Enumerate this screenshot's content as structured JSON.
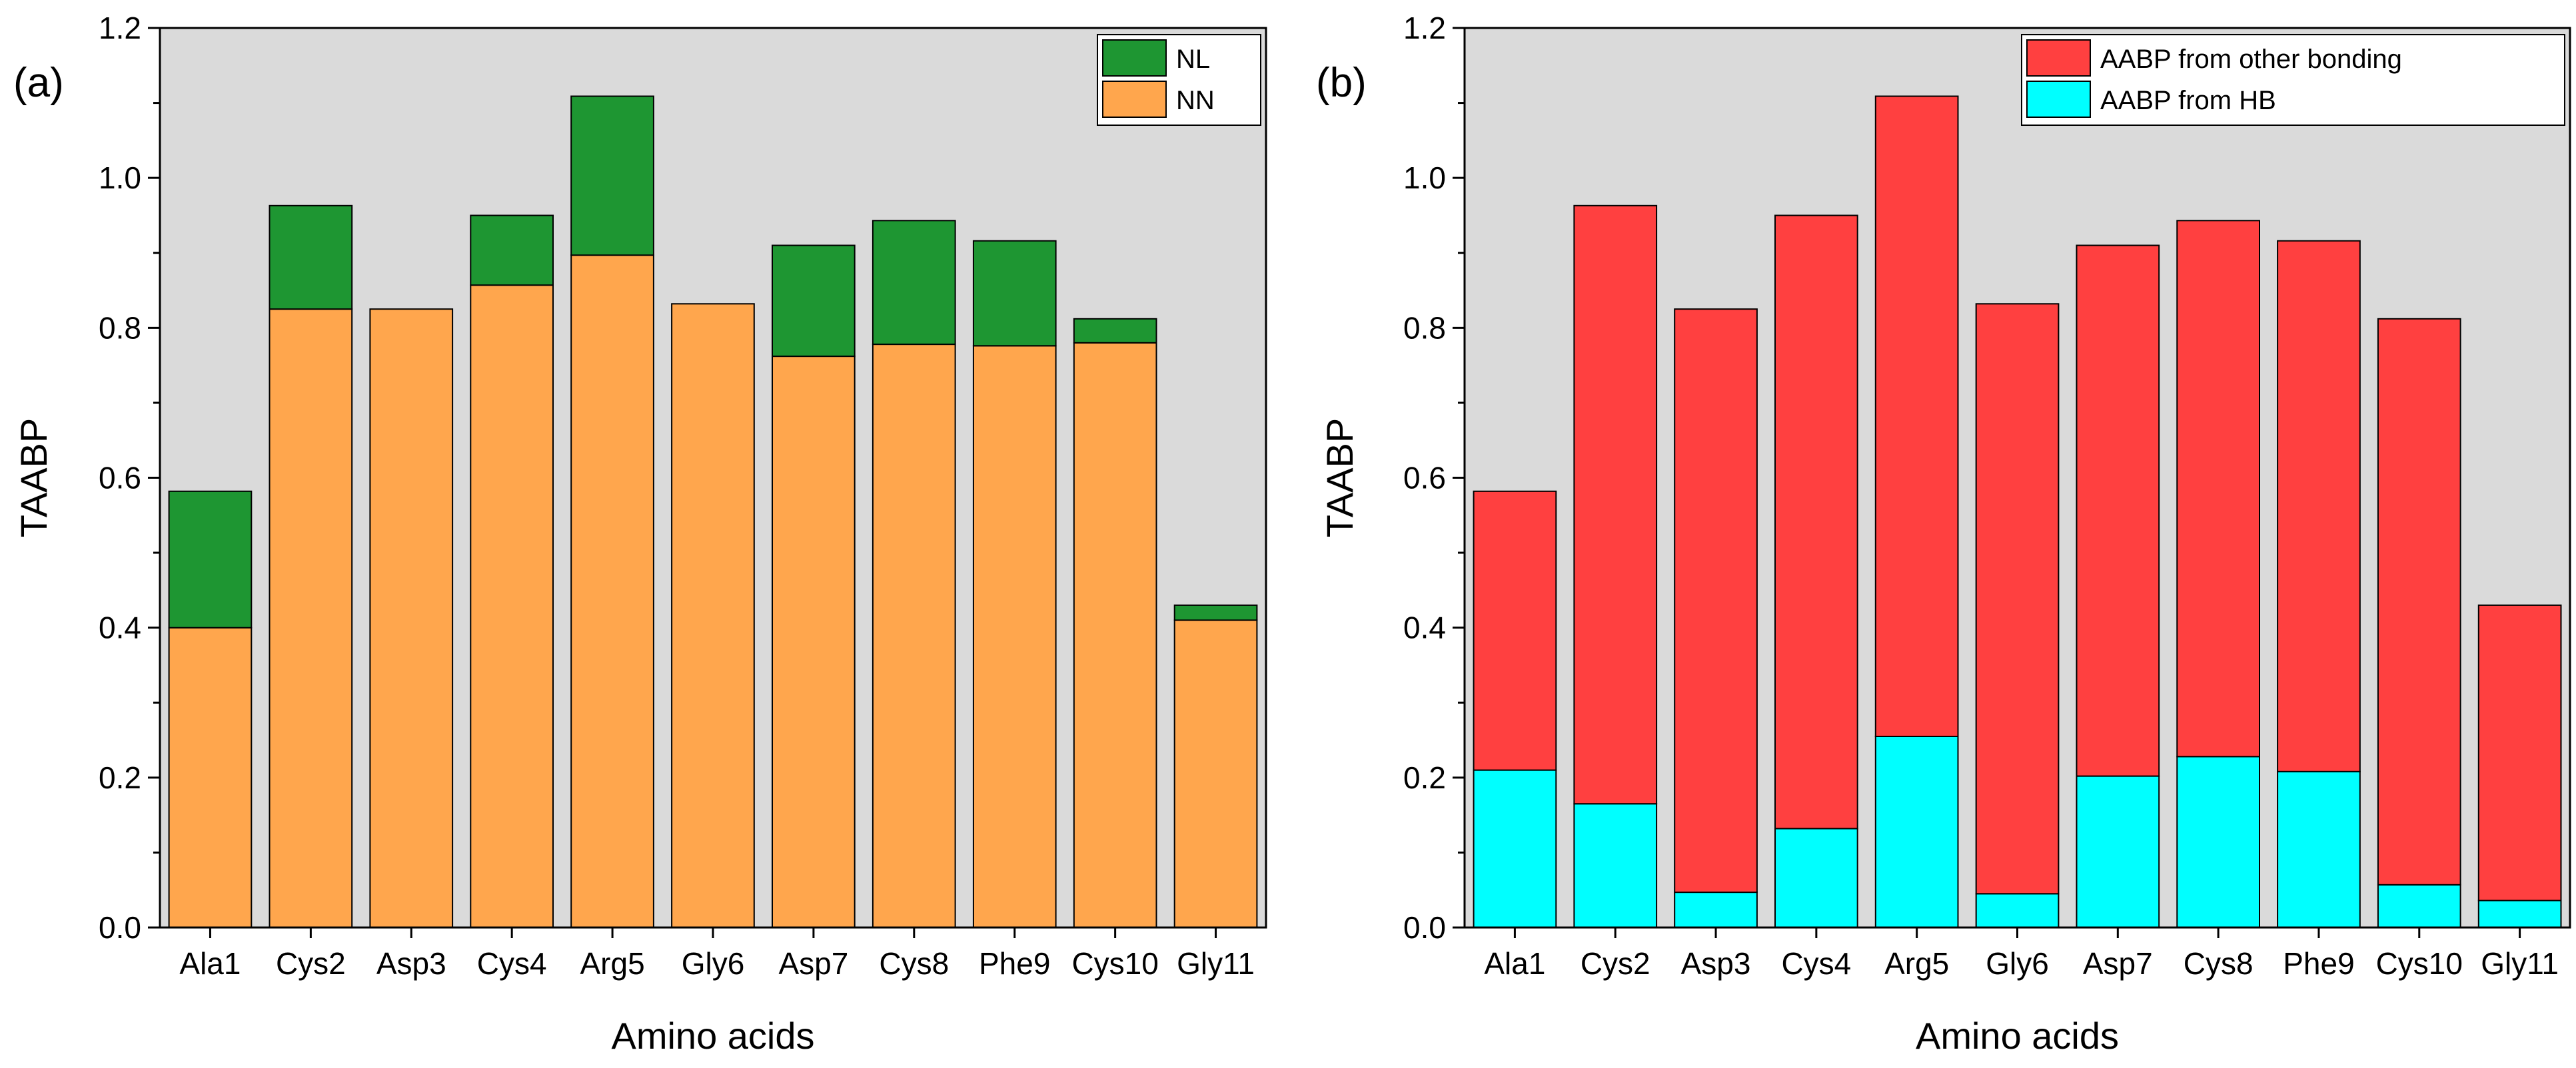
{
  "chart_data": [
    {
      "panel": "(a)",
      "type": "bar",
      "stacked": true,
      "xlabel": "Amino acids",
      "ylabel": "TAABP",
      "ylim": [
        0,
        1.2
      ],
      "yticks": [
        "0.0",
        "0.2",
        "0.4",
        "0.6",
        "0.8",
        "1.0",
        "1.2"
      ],
      "grid": false,
      "legend_position": "top-right",
      "categories": [
        "Ala1",
        "Cys2",
        "Asp3",
        "Cys4",
        "Arg5",
        "Gly6",
        "Asp7",
        "Cys8",
        "Phe9",
        "Cys10",
        "Gly11"
      ],
      "series": [
        {
          "name": "NN",
          "color": "#FFA64D",
          "values": [
            0.4,
            0.825,
            0.825,
            0.857,
            0.897,
            0.832,
            0.762,
            0.778,
            0.776,
            0.78,
            0.41
          ]
        },
        {
          "name": "NL",
          "color": "#1E9632",
          "values": [
            0.182,
            0.138,
            0.0,
            0.093,
            0.212,
            0.0,
            0.148,
            0.165,
            0.14,
            0.032,
            0.02
          ]
        }
      ],
      "legend": [
        "NL",
        "NN"
      ]
    },
    {
      "panel": "(b)",
      "type": "bar",
      "stacked": true,
      "xlabel": "Amino acids",
      "ylabel": "TAABP",
      "ylim": [
        0,
        1.2
      ],
      "yticks": [
        "0.0",
        "0.2",
        "0.4",
        "0.6",
        "0.8",
        "1.0",
        "1.2"
      ],
      "grid": false,
      "legend_position": "top-right",
      "categories": [
        "Ala1",
        "Cys2",
        "Asp3",
        "Cys4",
        "Arg5",
        "Gly6",
        "Asp7",
        "Cys8",
        "Phe9",
        "Cys10",
        "Gly11"
      ],
      "series": [
        {
          "name": "AABP from HB",
          "color": "#00FFFF",
          "values": [
            0.21,
            0.165,
            0.047,
            0.132,
            0.255,
            0.045,
            0.202,
            0.228,
            0.208,
            0.057,
            0.036
          ]
        },
        {
          "name": "AABP from other bonding",
          "color": "#FF4040",
          "values": [
            0.372,
            0.798,
            0.778,
            0.818,
            0.854,
            0.787,
            0.708,
            0.715,
            0.708,
            0.755,
            0.394
          ]
        }
      ],
      "legend": [
        "AABP from other bonding",
        "AABP from HB"
      ]
    }
  ]
}
